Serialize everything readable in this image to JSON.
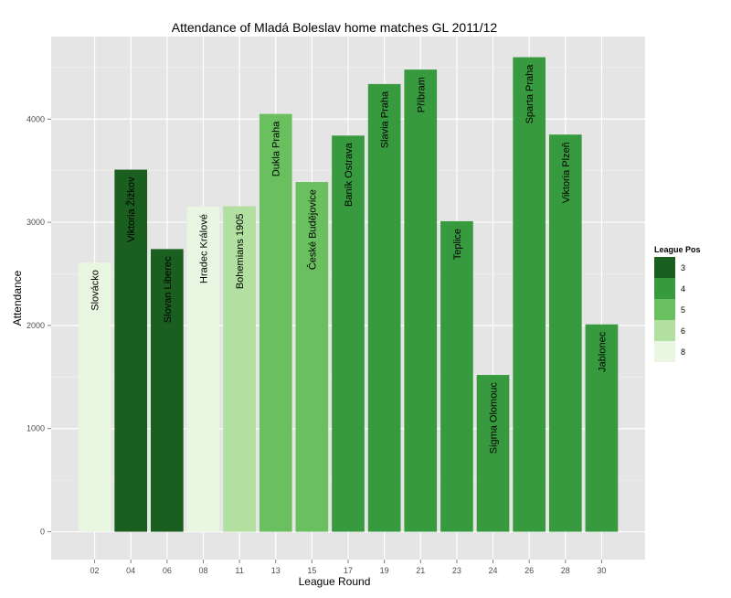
{
  "chart_data": {
    "type": "bar",
    "title": "Attendance of Mladá Boleslav home matches GL 2011/12",
    "xlabel": "League Round",
    "ylabel": "Attendance",
    "ylim": [
      -270,
      4800
    ],
    "yticks": [
      0,
      1000,
      2000,
      3000,
      4000
    ],
    "grid": true,
    "legend_placement": "right",
    "legend": {
      "title": "League Pos",
      "entries": [
        {
          "label": "3",
          "color": "#1a5e20"
        },
        {
          "label": "4",
          "color": "#379a3f"
        },
        {
          "label": "5",
          "color": "#6abf5f"
        },
        {
          "label": "6",
          "color": "#b1e0a0"
        },
        {
          "label": "8",
          "color": "#e9f6e2"
        }
      ]
    },
    "categories": [
      "02",
      "04",
      "06",
      "08",
      "11",
      "13",
      "15",
      "17",
      "19",
      "21",
      "23",
      "24",
      "26",
      "28",
      "30"
    ],
    "bars": [
      {
        "round": "02",
        "team": "Slovácko",
        "value": 2610,
        "pos": "8"
      },
      {
        "round": "04",
        "team": "Viktoria Žižkov",
        "value": 3510,
        "pos": "3"
      },
      {
        "round": "06",
        "team": "Slovan Liberec",
        "value": 2740,
        "pos": "3"
      },
      {
        "round": "08",
        "team": "Hradec Králové",
        "value": 3150,
        "pos": "8"
      },
      {
        "round": "11",
        "team": "Bohemians 1905",
        "value": 3155,
        "pos": "6"
      },
      {
        "round": "13",
        "team": "Dukla Praha",
        "value": 4050,
        "pos": "5"
      },
      {
        "round": "15",
        "team": "České Budějovice",
        "value": 3390,
        "pos": "5"
      },
      {
        "round": "17",
        "team": "Baník Ostrava",
        "value": 3840,
        "pos": "4"
      },
      {
        "round": "19",
        "team": "Slavia Praha",
        "value": 4340,
        "pos": "4"
      },
      {
        "round": "21",
        "team": "Příbram",
        "value": 4480,
        "pos": "4"
      },
      {
        "round": "23",
        "team": "Teplice",
        "value": 3010,
        "pos": "4"
      },
      {
        "round": "24",
        "team": "Sigma Olomouc",
        "value": 1520,
        "pos": "4"
      },
      {
        "round": "26",
        "team": "Sparta Praha",
        "value": 4600,
        "pos": "4"
      },
      {
        "round": "28",
        "team": "Viktoria Plzeň",
        "value": 3850,
        "pos": "4"
      },
      {
        "round": "30",
        "team": "Jablonec",
        "value": 2010,
        "pos": "4"
      }
    ]
  },
  "colors": {
    "panel_background": "#e5e5e5",
    "major_grid": "#ffffff",
    "minor_grid": "#f2f2f2"
  }
}
